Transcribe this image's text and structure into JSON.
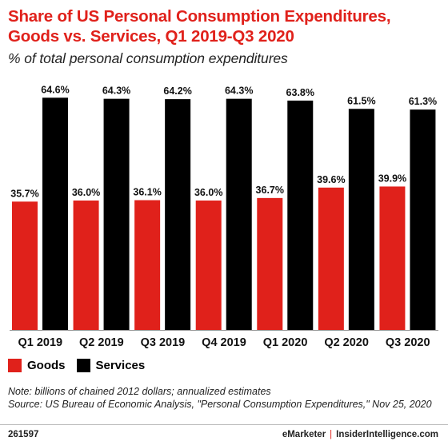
{
  "title": "Share of US Personal Consumption Expenditures, Goods vs. Services, Q1 2019-Q3 2020",
  "subtitle": "% of total personal consumption expenditures",
  "colors": {
    "goods": "#e0211b",
    "services": "#000000",
    "title": "#e0211b",
    "grid": "#c8c8c8"
  },
  "chart_data": {
    "type": "bar",
    "categories": [
      "Q1 2019",
      "Q2 2019",
      "Q3 2019",
      "Q4 2019",
      "Q1 2020",
      "Q2 2020",
      "Q3 2020"
    ],
    "series": [
      {
        "name": "Goods",
        "values": [
          35.7,
          36.0,
          36.1,
          36.0,
          36.7,
          39.6,
          39.9
        ],
        "labels": [
          "35.7%",
          "36.0%",
          "36.1%",
          "36.0%",
          "36.7%",
          "39.6%",
          "39.9%"
        ]
      },
      {
        "name": "Services",
        "values": [
          64.6,
          64.3,
          64.2,
          64.3,
          63.8,
          61.5,
          61.3
        ],
        "labels": [
          "64.6%",
          "64.3%",
          "64.2%",
          "64.3%",
          "63.8%",
          "61.5%",
          "61.3%"
        ]
      }
    ],
    "ylim": [
      0,
      70
    ],
    "grid": false,
    "legend_position": "bottom-left"
  },
  "legend": {
    "goods_label": "Goods",
    "services_label": "Services"
  },
  "notes": {
    "line1": "Note: billions of chained 2012 dollars; annualized estimates",
    "line2": "Source: US Bureau of Economic Analysis, \"Personal Consumption Expenditures,\" Nov 25, 2020"
  },
  "footer": {
    "id": "261597",
    "brand_left": "eMarketker",
    "separator": "|",
    "brand_right": "InsiderIntelligence.com"
  }
}
